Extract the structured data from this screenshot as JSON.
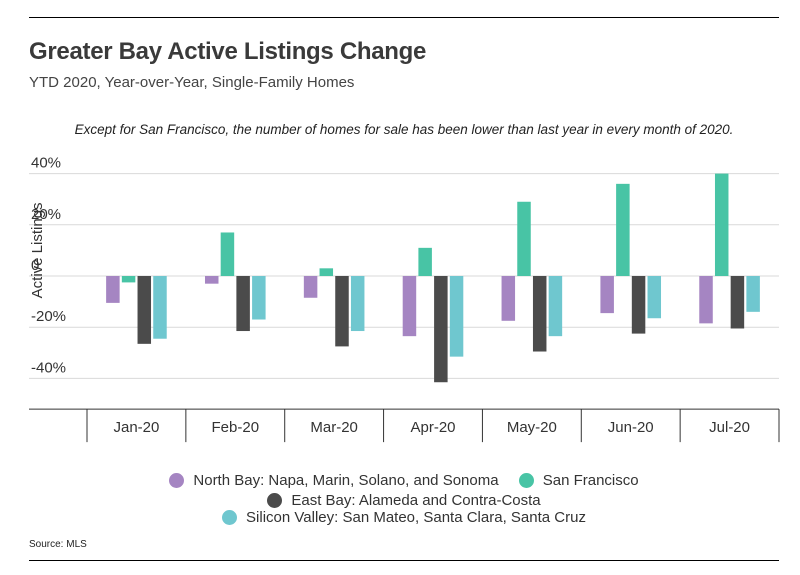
{
  "title": "Greater Bay Active Listings Change",
  "subtitle": "YTD 2020, Year-over-Year, Single-Family Homes",
  "annotation": "Except for San Francisco, the number of homes for sale has been lower than last year in every month of 2020.",
  "source": "Source: MLS",
  "chart_data": {
    "type": "bar",
    "categories": [
      "Jan-20",
      "Feb-20",
      "Mar-20",
      "Apr-20",
      "May-20",
      "Jun-20",
      "Jul-20"
    ],
    "ylabel": "Active Listings",
    "ylim": [
      -52,
      42
    ],
    "yticks": [
      {
        "value": 40,
        "label": "40%"
      },
      {
        "value": 20,
        "label": "20%"
      },
      {
        "value": 0,
        "label": "0"
      },
      {
        "value": -20,
        "label": "-20%"
      },
      {
        "value": -40,
        "label": "-40%"
      }
    ],
    "grid": true,
    "legend_position": "bottom",
    "series": [
      {
        "name": "North Bay: Napa, Marin, Solano, and Sonoma",
        "color": "#a585c2",
        "values": [
          -10.5,
          -3,
          -8.5,
          -23.5,
          -17.5,
          -14.5,
          -18.5
        ]
      },
      {
        "name": "San Francisco",
        "color": "#48c4a5",
        "values": [
          -2.5,
          17,
          3,
          11,
          29,
          36,
          40
        ]
      },
      {
        "name": "East Bay: Alameda and Contra-Costa",
        "color": "#4b4b4b",
        "values": [
          -26.5,
          -21.5,
          -27.5,
          -41.5,
          -29.5,
          -22.5,
          -20.5
        ]
      },
      {
        "name": "Silicon Valley: San Mateo, Santa Clara, Santa Cruz",
        "color": "#6fc7cf",
        "values": [
          -24.5,
          -17,
          -21.5,
          -31.5,
          -23.5,
          -16.5,
          -14
        ]
      }
    ]
  }
}
